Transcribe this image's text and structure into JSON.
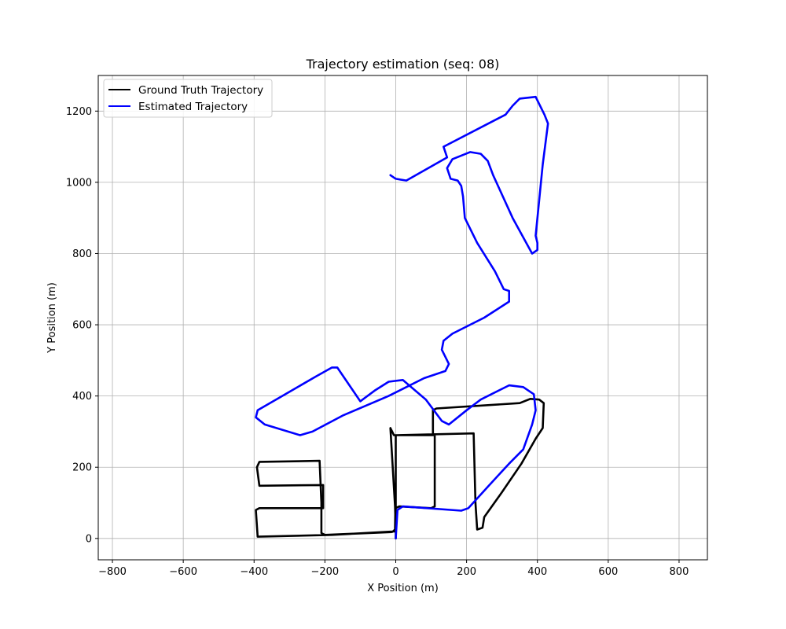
{
  "chart_data": {
    "type": "line",
    "title": "Trajectory estimation (seq: 08)",
    "xlabel": "X Position (m)",
    "ylabel": "Y Position (m)",
    "xlim": [
      -840,
      880
    ],
    "ylim": [
      -60,
      1300
    ],
    "xticks": [
      -800,
      -600,
      -400,
      -200,
      0,
      200,
      400,
      600,
      800
    ],
    "yticks": [
      0,
      200,
      400,
      600,
      800,
      1000,
      1200
    ],
    "grid": true,
    "legend": {
      "placement": "top-left"
    },
    "series": [
      {
        "name": "Ground Truth Trajectory",
        "color": "#000000",
        "points": [
          [
            0,
            0
          ],
          [
            0,
            20
          ],
          [
            -180,
            10
          ],
          [
            -390,
            5
          ],
          [
            -395,
            80
          ],
          [
            -385,
            85
          ],
          [
            -205,
            85
          ],
          [
            -205,
            150
          ],
          [
            -385,
            148
          ],
          [
            -392,
            200
          ],
          [
            -385,
            215
          ],
          [
            -215,
            218
          ],
          [
            -210,
            100
          ],
          [
            -210,
            15
          ],
          [
            -200,
            10
          ],
          [
            -10,
            18
          ],
          [
            -2,
            25
          ],
          [
            -1,
            85
          ],
          [
            10,
            90
          ],
          [
            100,
            85
          ],
          [
            110,
            90
          ],
          [
            110,
            290
          ],
          [
            -5,
            290
          ],
          [
            -15,
            310
          ],
          [
            -2,
            90
          ],
          [
            0,
            20
          ],
          [
            0,
            0
          ],
          [
            0,
            290
          ],
          [
            220,
            295
          ],
          [
            225,
            100
          ],
          [
            230,
            25
          ],
          [
            245,
            30
          ],
          [
            250,
            60
          ],
          [
            300,
            130
          ],
          [
            355,
            210
          ],
          [
            395,
            280
          ],
          [
            415,
            310
          ],
          [
            418,
            380
          ],
          [
            405,
            390
          ],
          [
            380,
            392
          ],
          [
            350,
            380
          ],
          [
            115,
            365
          ],
          [
            105,
            360
          ],
          [
            105,
            290
          ]
        ]
      },
      {
        "name": "Estimated Trajectory",
        "color": "#0000ff",
        "points": [
          [
            0,
            0
          ],
          [
            5,
            80
          ],
          [
            20,
            90
          ],
          [
            185,
            78
          ],
          [
            205,
            85
          ],
          [
            260,
            145
          ],
          [
            320,
            210
          ],
          [
            360,
            250
          ],
          [
            385,
            320
          ],
          [
            395,
            360
          ],
          [
            390,
            405
          ],
          [
            360,
            425
          ],
          [
            320,
            430
          ],
          [
            240,
            390
          ],
          [
            200,
            360
          ],
          [
            150,
            320
          ],
          [
            130,
            330
          ],
          [
            85,
            390
          ],
          [
            20,
            445
          ],
          [
            -20,
            440
          ],
          [
            -60,
            415
          ],
          [
            -100,
            385
          ],
          [
            -165,
            480
          ],
          [
            -180,
            480
          ],
          [
            -225,
            455
          ],
          [
            -390,
            360
          ],
          [
            -395,
            340
          ],
          [
            -370,
            320
          ],
          [
            -270,
            290
          ],
          [
            -235,
            300
          ],
          [
            -150,
            345
          ],
          [
            -20,
            400
          ],
          [
            20,
            420
          ],
          [
            80,
            450
          ],
          [
            140,
            470
          ],
          [
            150,
            490
          ],
          [
            130,
            530
          ],
          [
            135,
            555
          ],
          [
            160,
            575
          ],
          [
            250,
            620
          ],
          [
            320,
            665
          ],
          [
            320,
            695
          ],
          [
            305,
            700
          ],
          [
            280,
            750
          ],
          [
            230,
            830
          ],
          [
            195,
            900
          ],
          [
            190,
            960
          ],
          [
            185,
            990
          ],
          [
            175,
            1005
          ],
          [
            155,
            1010
          ],
          [
            145,
            1040
          ],
          [
            160,
            1065
          ],
          [
            210,
            1085
          ],
          [
            240,
            1080
          ],
          [
            260,
            1060
          ],
          [
            275,
            1020
          ],
          [
            330,
            900
          ],
          [
            385,
            800
          ],
          [
            400,
            810
          ],
          [
            400,
            830
          ],
          [
            395,
            850
          ],
          [
            415,
            1050
          ],
          [
            430,
            1165
          ],
          [
            420,
            1190
          ],
          [
            395,
            1240
          ],
          [
            350,
            1235
          ],
          [
            330,
            1215
          ],
          [
            310,
            1190
          ],
          [
            135,
            1100
          ],
          [
            145,
            1070
          ],
          [
            30,
            1005
          ],
          [
            0,
            1010
          ],
          [
            -15,
            1020
          ]
        ]
      }
    ]
  }
}
